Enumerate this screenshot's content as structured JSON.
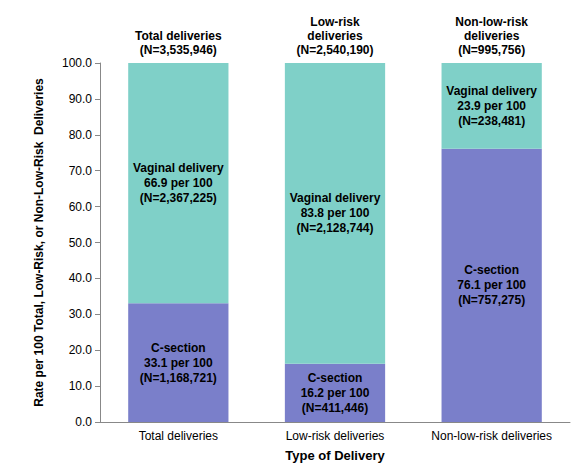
{
  "chart_data": {
    "type": "bar",
    "stacked": true,
    "data_labels": true,
    "grid": false,
    "xlabel": "Type of Delivery",
    "ylabel": "Rate per 100 Total, Low-Risk, or Non-Low-Risk  Deliveries",
    "categories": [
      "Total deliveries",
      "Low-risk deliveries",
      "Non-low-risk deliveries"
    ],
    "group_labels": [
      "Total deliveries\n(N=3,535,946)",
      "Low-risk\ndeliveries\n(N=2,540,190)",
      "Non-low-risk\ndeliveries\n(N=995,756)"
    ],
    "series": [
      {
        "name": "C-section",
        "color": "#7a7fca",
        "values": [
          33.1,
          16.2,
          76.1
        ],
        "value_labels": [
          "33.1 per 100",
          "16.2 per 100",
          "76.1 per 100"
        ],
        "count_labels": [
          "(N=1,168,721)",
          "(N=411,446)",
          "(N=757,275)"
        ]
      },
      {
        "name": "Vaginal delivery",
        "color": "#7fd0c8",
        "values": [
          66.9,
          83.8,
          23.9
        ],
        "value_labels": [
          "66.9 per 100",
          "83.8 per 100",
          "23.9 per 100"
        ],
        "count_labels": [
          "(N=2,367,225)",
          "(N=2,128,744)",
          "(N=238,481)"
        ]
      }
    ],
    "ylim": [
      0,
      100
    ],
    "yticks": [
      {
        "value": 0,
        "label": "0.0"
      },
      {
        "value": 10,
        "label": "10.0"
      },
      {
        "value": 20,
        "label": "20.0"
      },
      {
        "value": 30,
        "label": "30.0"
      },
      {
        "value": 40,
        "label": "40.0"
      },
      {
        "value": 50,
        "label": "50.0"
      },
      {
        "value": 60,
        "label": "60.0"
      },
      {
        "value": 70,
        "label": "70.0"
      },
      {
        "value": 80,
        "label": "80.0"
      },
      {
        "value": 90,
        "label": "90.0"
      },
      {
        "value": 100,
        "label": "100.0"
      }
    ]
  }
}
